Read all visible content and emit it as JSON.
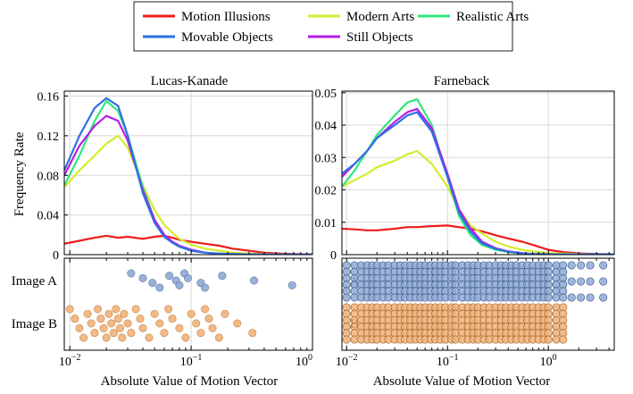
{
  "legend": {
    "entries": [
      {
        "label": "Motion Illusions",
        "color": "#ee1c1c"
      },
      {
        "label": "Modern Arts",
        "color": "#d4ec2c"
      },
      {
        "label": "Realistic Arts",
        "color": "#2ee87a"
      },
      {
        "label": "Movable Objects",
        "color": "#2f6fe4"
      },
      {
        "label": "Still Objects",
        "color": "#b51ee6"
      }
    ]
  },
  "shared": {
    "xlabel": "Absolute Value of Motion Vector",
    "ylabel": "Frequency Rate"
  },
  "chart_data": [
    {
      "type": "line",
      "title": "Lucas-Kanade",
      "xscale": "log",
      "xlim": [
        0.009,
        1.0
      ],
      "ylim": [
        0,
        0.165
      ],
      "yticks": [
        "0",
        "0.04",
        "0.08",
        "0.12",
        "0.16"
      ],
      "ytick_values": [
        0,
        0.04,
        0.08,
        0.12,
        0.16
      ],
      "xticks": [
        "10^-2",
        "10^-1",
        "10^0"
      ],
      "xtick_values": [
        0.01,
        0.1,
        1.0
      ],
      "series": [
        {
          "name": "Motion Illusions",
          "x": [
            0.009,
            0.012,
            0.016,
            0.02,
            0.025,
            0.03,
            0.04,
            0.05,
            0.06,
            0.07,
            0.08,
            0.1,
            0.13,
            0.17,
            0.22,
            0.3,
            0.4,
            0.55,
            0.7,
            1.0
          ],
          "y": [
            0.011,
            0.014,
            0.017,
            0.019,
            0.017,
            0.018,
            0.016,
            0.018,
            0.019,
            0.017,
            0.015,
            0.013,
            0.011,
            0.009,
            0.006,
            0.004,
            0.002,
            0.001,
            0.0005,
            0.0003
          ]
        },
        {
          "name": "Modern Arts",
          "x": [
            0.009,
            0.012,
            0.016,
            0.02,
            0.025,
            0.03,
            0.04,
            0.05,
            0.06,
            0.07,
            0.08,
            0.1,
            0.13,
            0.17,
            0.22,
            0.3,
            0.4,
            0.55,
            0.7,
            1.0
          ],
          "y": [
            0.068,
            0.085,
            0.1,
            0.112,
            0.12,
            0.108,
            0.07,
            0.045,
            0.03,
            0.022,
            0.016,
            0.01,
            0.006,
            0.004,
            0.002,
            0.001,
            0.0005,
            0.0003,
            0.0002,
            0.0001
          ]
        },
        {
          "name": "Realistic Arts",
          "x": [
            0.009,
            0.012,
            0.016,
            0.02,
            0.025,
            0.03,
            0.04,
            0.05,
            0.06,
            0.07,
            0.08,
            0.1,
            0.13,
            0.17,
            0.22,
            0.3,
            0.4,
            0.55,
            0.7,
            1.0
          ],
          "y": [
            0.07,
            0.1,
            0.135,
            0.155,
            0.145,
            0.12,
            0.068,
            0.035,
            0.02,
            0.012,
            0.008,
            0.004,
            0.002,
            0.001,
            0.0005,
            0.0003,
            0.0002,
            0.0001,
            0.0001,
            0.0001
          ]
        },
        {
          "name": "Movable Objects",
          "x": [
            0.009,
            0.012,
            0.016,
            0.02,
            0.025,
            0.03,
            0.04,
            0.05,
            0.06,
            0.07,
            0.08,
            0.1,
            0.13,
            0.17,
            0.22,
            0.3,
            0.4,
            0.55,
            0.7,
            1.0
          ],
          "y": [
            0.085,
            0.12,
            0.148,
            0.158,
            0.15,
            0.12,
            0.062,
            0.032,
            0.018,
            0.012,
            0.008,
            0.004,
            0.002,
            0.001,
            0.0005,
            0.0003,
            0.0002,
            0.0001,
            0.0001,
            0.0001
          ]
        },
        {
          "name": "Still Objects",
          "x": [
            0.009,
            0.012,
            0.016,
            0.02,
            0.025,
            0.03,
            0.04,
            0.05,
            0.06,
            0.07,
            0.08,
            0.1,
            0.13,
            0.17,
            0.22,
            0.3,
            0.4,
            0.55,
            0.7,
            1.0
          ],
          "y": [
            0.08,
            0.11,
            0.13,
            0.14,
            0.135,
            0.115,
            0.065,
            0.035,
            0.02,
            0.013,
            0.009,
            0.005,
            0.002,
            0.001,
            0.0005,
            0.0003,
            0.0002,
            0.0001,
            0.0001,
            0.0001
          ]
        }
      ],
      "strip": {
        "rows": [
          {
            "label": "Image A",
            "color": "#8fa9d3",
            "edge": "#5e79a8",
            "x": [
              0.032,
              0.04,
              0.048,
              0.055,
              0.066,
              0.075,
              0.08,
              0.088,
              0.094,
              0.12,
              0.13,
              0.18,
              0.33,
              0.68
            ]
          },
          {
            "label": "Image B",
            "color": "#f0b27a",
            "edge": "#c98443",
            "x": [
              0.01,
              0.011,
              0.012,
              0.013,
              0.014,
              0.015,
              0.016,
              0.017,
              0.018,
              0.019,
              0.02,
              0.021,
              0.022,
              0.023,
              0.024,
              0.025,
              0.026,
              0.027,
              0.028,
              0.03,
              0.032,
              0.035,
              0.038,
              0.04,
              0.045,
              0.05,
              0.055,
              0.06,
              0.065,
              0.07,
              0.08,
              0.09,
              0.1,
              0.11,
              0.12,
              0.13,
              0.14,
              0.15,
              0.17,
              0.19,
              0.24,
              0.32
            ]
          }
        ]
      }
    },
    {
      "type": "line",
      "title": "Farneback",
      "xscale": "log",
      "xlim": [
        0.009,
        4.5
      ],
      "ylim": [
        0,
        0.0505
      ],
      "yticks": [
        "0",
        "0.01",
        "0.02",
        "0.03",
        "0.04",
        "0.05"
      ],
      "ytick_values": [
        0,
        0.01,
        0.02,
        0.03,
        0.04,
        0.05
      ],
      "xticks": [
        "10^-2",
        "10^-1",
        "10^0"
      ],
      "xtick_values": [
        0.01,
        0.1,
        1.0
      ],
      "series": [
        {
          "name": "Motion Illusions",
          "x": [
            0.009,
            0.012,
            0.016,
            0.02,
            0.03,
            0.04,
            0.05,
            0.07,
            0.1,
            0.13,
            0.17,
            0.22,
            0.3,
            0.4,
            0.55,
            0.7,
            1.0,
            1.4,
            2.0,
            3.0,
            4.5
          ],
          "y": [
            0.008,
            0.0078,
            0.0075,
            0.0075,
            0.008,
            0.0085,
            0.0085,
            0.0088,
            0.009,
            0.0085,
            0.008,
            0.0072,
            0.006,
            0.005,
            0.004,
            0.003,
            0.0015,
            0.0008,
            0.0004,
            0.0002,
            0.0001
          ]
        },
        {
          "name": "Modern Arts",
          "x": [
            0.009,
            0.012,
            0.016,
            0.02,
            0.03,
            0.04,
            0.05,
            0.07,
            0.1,
            0.13,
            0.17,
            0.22,
            0.3,
            0.4,
            0.55,
            0.7,
            1.0,
            1.4,
            2.0,
            3.0,
            4.5
          ],
          "y": [
            0.021,
            0.023,
            0.025,
            0.027,
            0.029,
            0.031,
            0.032,
            0.028,
            0.021,
            0.014,
            0.009,
            0.0065,
            0.004,
            0.0025,
            0.0015,
            0.001,
            0.0005,
            0.0003,
            0.0002,
            0.0001,
            0.0001
          ]
        },
        {
          "name": "Realistic Arts",
          "x": [
            0.009,
            0.012,
            0.016,
            0.02,
            0.03,
            0.04,
            0.05,
            0.07,
            0.1,
            0.13,
            0.17,
            0.22,
            0.3,
            0.4,
            0.55,
            0.7,
            1.0,
            1.4,
            2.0,
            3.0,
            4.5
          ],
          "y": [
            0.021,
            0.026,
            0.032,
            0.037,
            0.043,
            0.047,
            0.048,
            0.04,
            0.024,
            0.012,
            0.006,
            0.003,
            0.0015,
            0.0008,
            0.0004,
            0.0002,
            0.0001,
            0.0001,
            0.0001,
            0.0001,
            0.0001
          ]
        },
        {
          "name": "Movable Objects",
          "x": [
            0.009,
            0.012,
            0.016,
            0.02,
            0.03,
            0.04,
            0.05,
            0.07,
            0.1,
            0.13,
            0.17,
            0.22,
            0.3,
            0.4,
            0.55,
            0.7,
            1.0,
            1.4,
            2.0,
            3.0,
            4.5
          ],
          "y": [
            0.025,
            0.028,
            0.032,
            0.036,
            0.04,
            0.043,
            0.044,
            0.038,
            0.024,
            0.013,
            0.007,
            0.0035,
            0.0018,
            0.0009,
            0.0004,
            0.0002,
            0.0001,
            0.0001,
            0.0001,
            0.0001,
            0.0001
          ]
        },
        {
          "name": "Still Objects",
          "x": [
            0.009,
            0.012,
            0.016,
            0.02,
            0.03,
            0.04,
            0.05,
            0.07,
            0.1,
            0.13,
            0.17,
            0.22,
            0.3,
            0.4,
            0.55,
            0.7,
            1.0,
            1.4,
            2.0,
            3.0,
            4.5
          ],
          "y": [
            0.024,
            0.028,
            0.032,
            0.036,
            0.041,
            0.044,
            0.045,
            0.039,
            0.025,
            0.014,
            0.008,
            0.004,
            0.002,
            0.001,
            0.0005,
            0.0002,
            0.0001,
            0.0001,
            0.0001,
            0.0001,
            0.0001
          ]
        }
      ],
      "strip": {
        "rows": [
          {
            "label": "A",
            "color": "#8fa9d3",
            "edge": "#3f5f8f",
            "x": [
              0.01,
              0.012,
              0.014,
              0.016,
              0.018,
              0.02,
              0.023,
              0.026,
              0.03,
              0.034,
              0.038,
              0.043,
              0.048,
              0.054,
              0.06,
              0.068,
              0.076,
              0.085,
              0.095,
              0.11,
              0.12,
              0.14,
              0.16,
              0.18,
              0.2,
              0.23,
              0.26,
              0.3,
              0.34,
              0.38,
              0.43,
              0.48,
              0.55,
              0.62,
              0.7,
              0.8,
              0.9,
              1.0,
              1.2,
              1.4,
              1.7,
              2.1,
              2.6,
              3.5
            ]
          },
          {
            "label": "B",
            "color": "#f0b27a",
            "edge": "#a86a2a",
            "x": [
              0.01,
              0.012,
              0.014,
              0.016,
              0.018,
              0.02,
              0.023,
              0.026,
              0.03,
              0.034,
              0.038,
              0.043,
              0.048,
              0.054,
              0.06,
              0.068,
              0.076,
              0.085,
              0.095,
              0.11,
              0.12,
              0.14,
              0.16,
              0.18,
              0.2,
              0.23,
              0.26,
              0.3,
              0.34,
              0.38,
              0.43,
              0.48,
              0.55,
              0.62,
              0.7,
              0.8,
              0.9,
              1.0,
              1.2,
              1.4
            ]
          }
        ]
      }
    }
  ]
}
